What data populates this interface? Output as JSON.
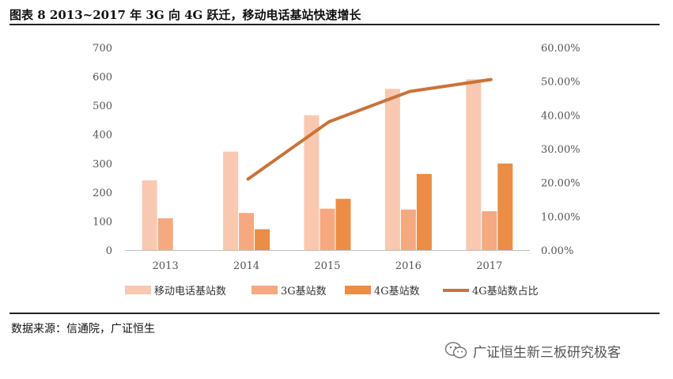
{
  "header": {
    "title": "图表 8 2013~2017 年 3G 向 4G 跃迁，移动电话基站快速增长"
  },
  "footer": {
    "source": "数据来源：信通院，广证恒生"
  },
  "watermark": {
    "text": "广证恒生新三板研究极客",
    "icon": "wechat-icon"
  },
  "colors": {
    "mobile": "#f8c9b0",
    "g3": "#f4a980",
    "g4": "#eb8d45",
    "ratio": "#c8733a",
    "axis_text": "#555555",
    "axis_line": "#bfbfbf"
  },
  "chart_data": {
    "type": "bar",
    "title": "",
    "categories": [
      "2013",
      "2014",
      "2015",
      "2016",
      "2017"
    ],
    "series": [
      {
        "name": "移动电话基站数",
        "kind": "bar",
        "axis": "left",
        "values": [
          241,
          340,
          466,
          557,
          590
        ]
      },
      {
        "name": "3G基站数",
        "kind": "bar",
        "axis": "left",
        "values": [
          110,
          128,
          143,
          140,
          134
        ]
      },
      {
        "name": "4G基站数",
        "kind": "bar",
        "axis": "left",
        "values": [
          null,
          72,
          177,
          263,
          299
        ]
      },
      {
        "name": "4G基站数占比",
        "kind": "line",
        "axis": "right",
        "values": [
          null,
          0.21,
          0.38,
          0.47,
          0.505
        ]
      }
    ],
    "ylim": [
      0,
      700
    ],
    "yticks": [
      "0",
      "100",
      "200",
      "300",
      "400",
      "500",
      "600",
      "700"
    ],
    "y2lim": [
      0,
      0.6
    ],
    "y2ticks": [
      "0.00%",
      "10.00%",
      "20.00%",
      "30.00%",
      "40.00%",
      "50.00%",
      "60.00%"
    ],
    "legend_position": "bottom"
  }
}
